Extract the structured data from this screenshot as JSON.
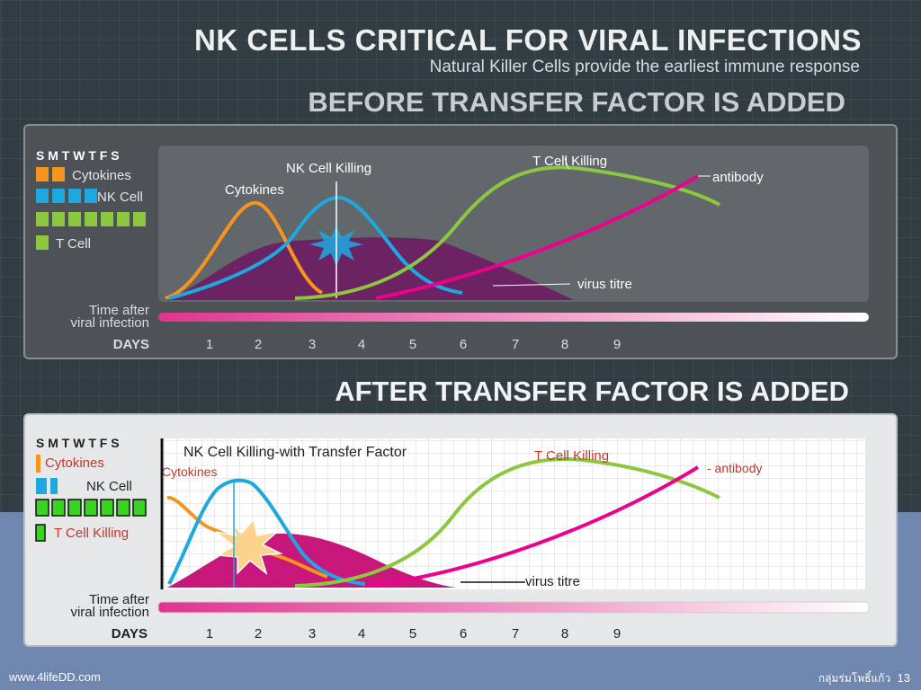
{
  "title": "NK CELLS CRITICAL FOR VIRAL INFECTIONS",
  "subtitle": "Natural Killer Cells provide the earliest immune response",
  "before_header": "BEFORE TRANSFER FACTOR IS ADDED",
  "after_header": "AFTER TRANSFER FACTOR IS ADDED",
  "weekdays": "S M T W T F S",
  "time_label_1": "Time after",
  "time_label_2": "viral infection",
  "days_label": "DAYS",
  "day_numbers": [
    "1",
    "2",
    "3",
    "4",
    "5",
    "6",
    "7",
    "8",
    "9"
  ],
  "before": {
    "legend_cytokines": "Cytokines",
    "legend_nk": "NK Cell",
    "legend_tcell": "T Cell",
    "label_cytokines": "Cytokines",
    "label_nk_killing": "NK Cell Killing",
    "label_t_killing": "T Cell Killing",
    "label_antibody": "antibody",
    "label_virus": "virus titre"
  },
  "after": {
    "legend_cytokines": "Cytokines",
    "legend_nk": "NK Cell",
    "legend_tcell": "T Cell Killing",
    "label_nk_killing": "NK Cell Killing-with Transfer Factor",
    "label_cytokines": "Cytokines",
    "label_t_killing": "T Cell Killing",
    "label_antibody": "-  antibody",
    "label_virus": "virus titre"
  },
  "colors": {
    "cytokines": "#f7941d",
    "nk": "#1ea8e0",
    "tcell": "#8dc63f",
    "antibody": "#ec008c",
    "virus": "#7b1f6e"
  },
  "footer_left": "www.4lifeDD.com",
  "footer_right_text": "กลุ่มร่มโพธิ์แก้ว",
  "page_number": "13"
}
